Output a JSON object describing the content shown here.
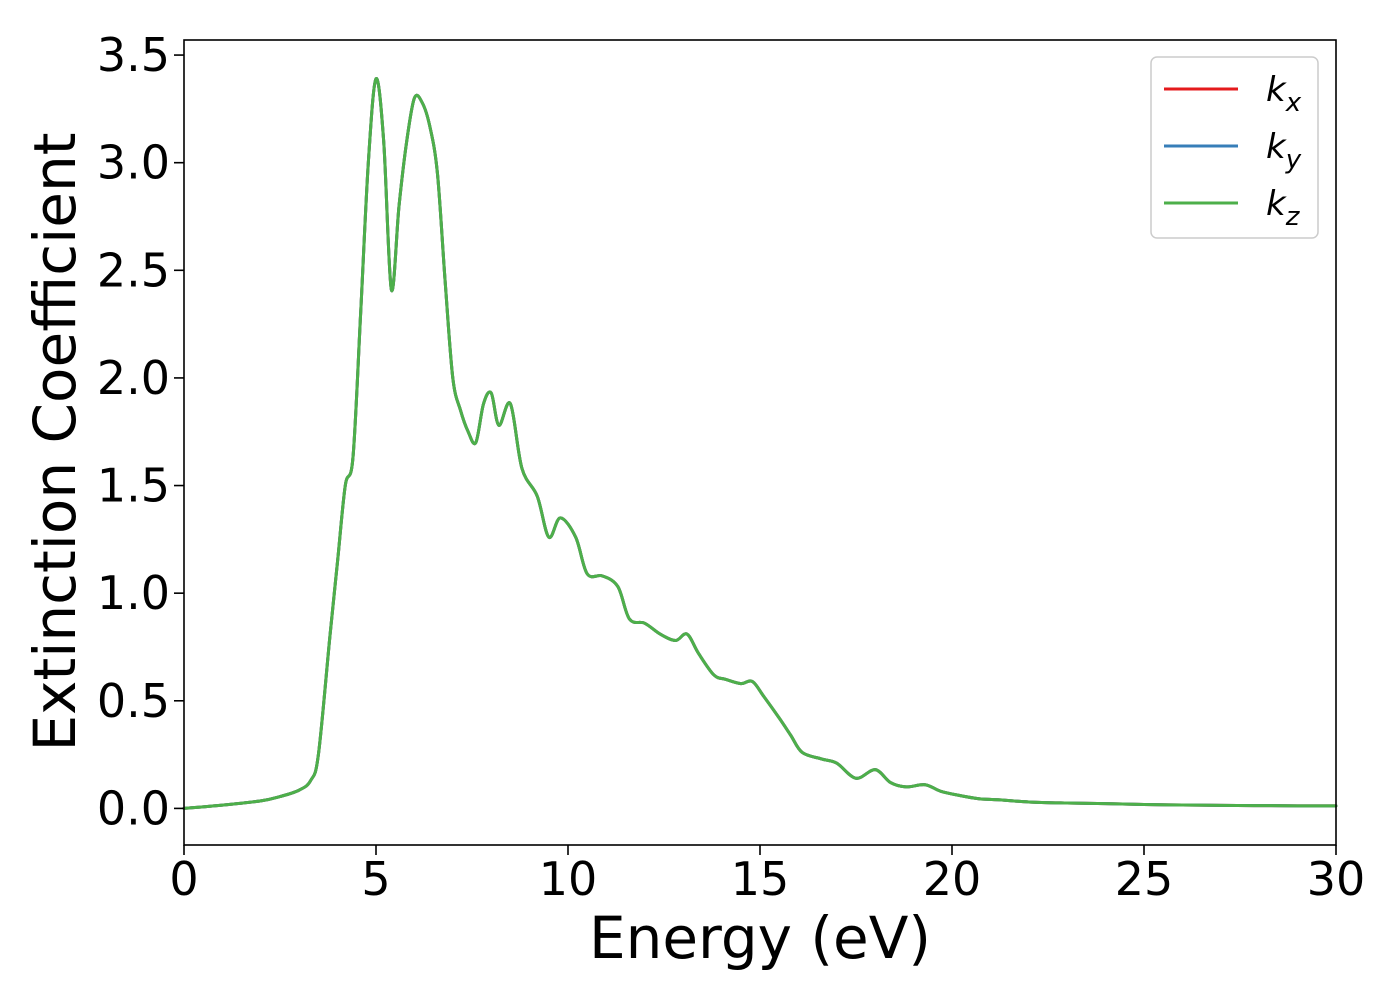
{
  "chart_data": {
    "type": "line",
    "xlabel": "Energy (eV)",
    "ylabel": "Extinction Coefficient",
    "xlim": [
      0,
      30
    ],
    "ylim": [
      -0.17,
      3.57
    ],
    "xticks": [
      0,
      5,
      10,
      15,
      20,
      25,
      30
    ],
    "yticks": [
      0.0,
      0.5,
      1.0,
      1.5,
      2.0,
      2.5,
      3.0,
      3.5
    ],
    "xtick_labels": [
      "0",
      "5",
      "10",
      "15",
      "20",
      "25",
      "30"
    ],
    "ytick_labels": [
      "0.0",
      "0.5",
      "1.0",
      "1.5",
      "2.0",
      "2.5",
      "3.0",
      "3.5"
    ],
    "grid": false,
    "legend_position": "top-right",
    "series": [
      {
        "name": "k_x",
        "label_base": "k",
        "label_sub": "x",
        "color": "#e41a1c"
      },
      {
        "name": "k_y",
        "label_base": "k",
        "label_sub": "y",
        "color": "#377eb8"
      },
      {
        "name": "k_z",
        "label_base": "k",
        "label_sub": "z",
        "color": "#4daf4a"
      }
    ],
    "shared_curve": {
      "x": [
        0,
        1,
        2,
        2.5,
        3.0,
        3.3,
        3.5,
        3.8,
        4.0,
        4.2,
        4.4,
        4.6,
        4.8,
        5.0,
        5.2,
        5.4,
        5.6,
        5.8,
        6.0,
        6.2,
        6.4,
        6.6,
        6.8,
        7.0,
        7.2,
        7.4,
        7.6,
        7.8,
        8.0,
        8.2,
        8.5,
        8.8,
        9.2,
        9.5,
        9.8,
        10.2,
        10.5,
        10.9,
        11.3,
        11.6,
        12.0,
        12.4,
        12.8,
        13.1,
        13.4,
        13.8,
        14.1,
        14.5,
        14.8,
        15.1,
        15.5,
        15.8,
        16.1,
        16.6,
        17.0,
        17.5,
        18.0,
        18.4,
        18.8,
        19.3,
        19.7,
        20.2,
        20.7,
        21.2,
        22.0,
        23.0,
        24.0,
        25.0,
        26.0,
        27.0,
        28.0,
        29.0,
        30.0
      ],
      "y": [
        0.0,
        0.015,
        0.035,
        0.055,
        0.085,
        0.13,
        0.25,
        0.8,
        1.15,
        1.5,
        1.63,
        2.3,
        3.0,
        3.39,
        3.1,
        2.41,
        2.8,
        3.1,
        3.3,
        3.28,
        3.17,
        2.95,
        2.45,
        2.0,
        1.85,
        1.75,
        1.7,
        1.88,
        1.93,
        1.78,
        1.88,
        1.58,
        1.45,
        1.26,
        1.35,
        1.26,
        1.09,
        1.08,
        1.03,
        0.88,
        0.86,
        0.81,
        0.78,
        0.81,
        0.72,
        0.62,
        0.6,
        0.58,
        0.59,
        0.52,
        0.42,
        0.34,
        0.26,
        0.23,
        0.21,
        0.14,
        0.18,
        0.12,
        0.1,
        0.11,
        0.08,
        0.06,
        0.045,
        0.04,
        0.03,
        0.025,
        0.022,
        0.018,
        0.016,
        0.014,
        0.013,
        0.012,
        0.012
      ]
    }
  }
}
